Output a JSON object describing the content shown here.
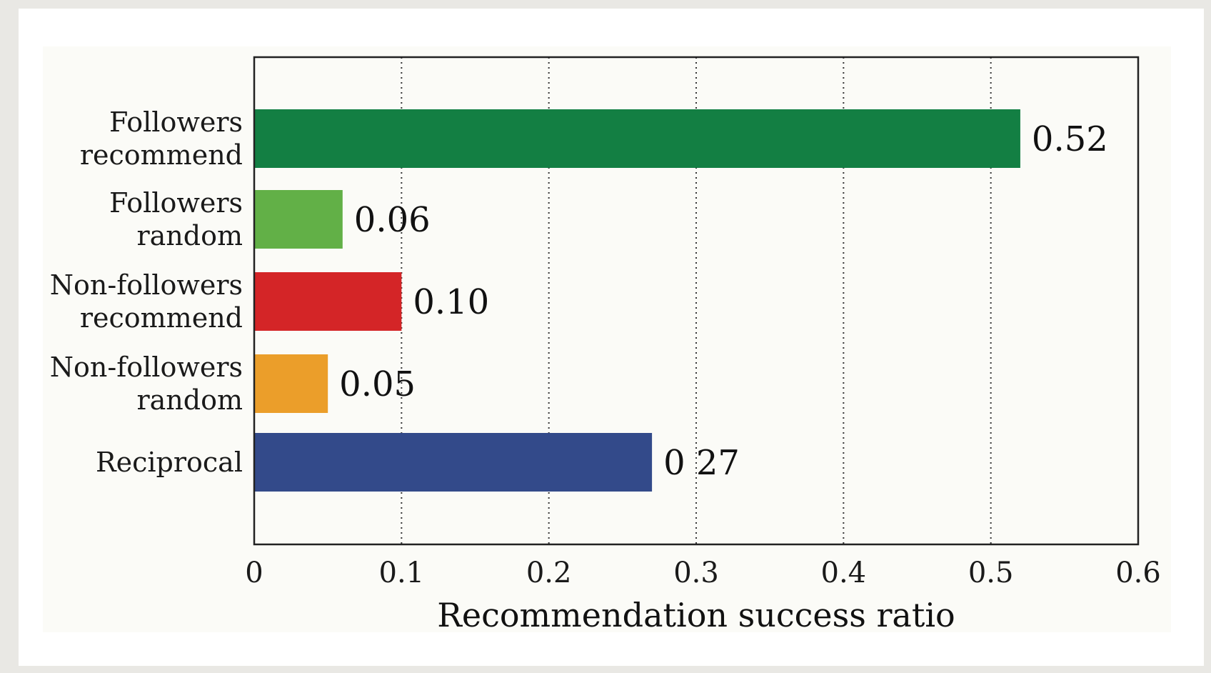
{
  "chart_data": {
    "type": "bar",
    "orientation": "horizontal",
    "categories": [
      [
        "Followers",
        "recommend"
      ],
      [
        "Followers",
        "random"
      ],
      [
        "Non-followers",
        "recommend"
      ],
      [
        "Non-followers",
        "random"
      ],
      [
        "Reciprocal"
      ]
    ],
    "values": [
      0.52,
      0.06,
      0.1,
      0.05,
      0.27
    ],
    "value_labels": [
      "0.52",
      "0.06",
      "0.10",
      "0.05",
      "0 27"
    ],
    "colors": [
      "#137f43",
      "#62b047",
      "#d42527",
      "#eb9e2a",
      "#334a8a"
    ],
    "xlabel": "Recommendation success ratio",
    "ylabel": "",
    "title": "",
    "xlim": [
      0,
      0.6
    ],
    "xticks": [
      0,
      0.1,
      0.2,
      0.3,
      0.4,
      0.5,
      0.6
    ],
    "xtick_labels": [
      "0",
      "0.1",
      "0.2",
      "0.3",
      "0.4",
      "0.5",
      "0.6"
    ],
    "grid": "vertical-dotted",
    "legend": "none"
  }
}
